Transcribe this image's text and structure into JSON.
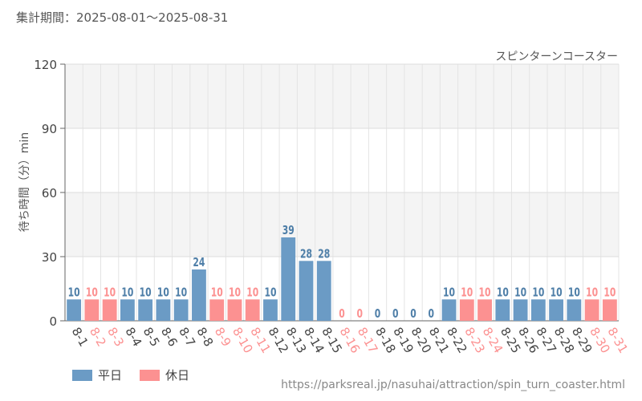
{
  "header": {
    "period_label": "集計期間：2025-08-01～2025-08-31"
  },
  "legend": {
    "weekday_label": "平日",
    "holiday_label": "休日"
  },
  "footer": {
    "source_url": "https://parksreal.jp/nasuhai/attraction/spin_turn_coaster.html"
  },
  "colors": {
    "weekday": "#6b9bc5",
    "holiday": "#fc9191",
    "weekday_label_text": "#4f7fa8",
    "holiday_label_text": "#fc9191"
  },
  "chart_data": {
    "type": "bar",
    "title": "スピンターンコースター",
    "ylabel": "待ち時間（分）min",
    "xlabel": "",
    "ylim": [
      0,
      120
    ],
    "yticks": [
      0,
      30,
      60,
      90,
      120
    ],
    "grid": true,
    "legend_position": "bottom-left",
    "categories": [
      "8-1",
      "8-2",
      "8-3",
      "8-4",
      "8-5",
      "8-6",
      "8-7",
      "8-8",
      "8-9",
      "8-10",
      "8-11",
      "8-12",
      "8-13",
      "8-14",
      "8-15",
      "8-16",
      "8-17",
      "8-18",
      "8-19",
      "8-20",
      "8-21",
      "8-22",
      "8-23",
      "8-24",
      "8-25",
      "8-26",
      "8-27",
      "8-28",
      "8-29",
      "8-30",
      "8-31"
    ],
    "values": [
      10,
      10,
      10,
      10,
      10,
      10,
      10,
      24,
      10,
      10,
      10,
      10,
      39,
      28,
      28,
      0,
      0,
      0,
      0,
      0,
      0,
      10,
      10,
      10,
      10,
      10,
      10,
      10,
      10,
      10,
      10
    ],
    "day_types": [
      "weekday",
      "holiday",
      "holiday",
      "weekday",
      "weekday",
      "weekday",
      "weekday",
      "weekday",
      "holiday",
      "holiday",
      "holiday",
      "weekday",
      "weekday",
      "weekday",
      "weekday",
      "holiday",
      "holiday",
      "weekday",
      "weekday",
      "weekday",
      "weekday",
      "weekday",
      "holiday",
      "holiday",
      "weekday",
      "weekday",
      "weekday",
      "weekday",
      "weekday",
      "holiday",
      "holiday"
    ]
  }
}
